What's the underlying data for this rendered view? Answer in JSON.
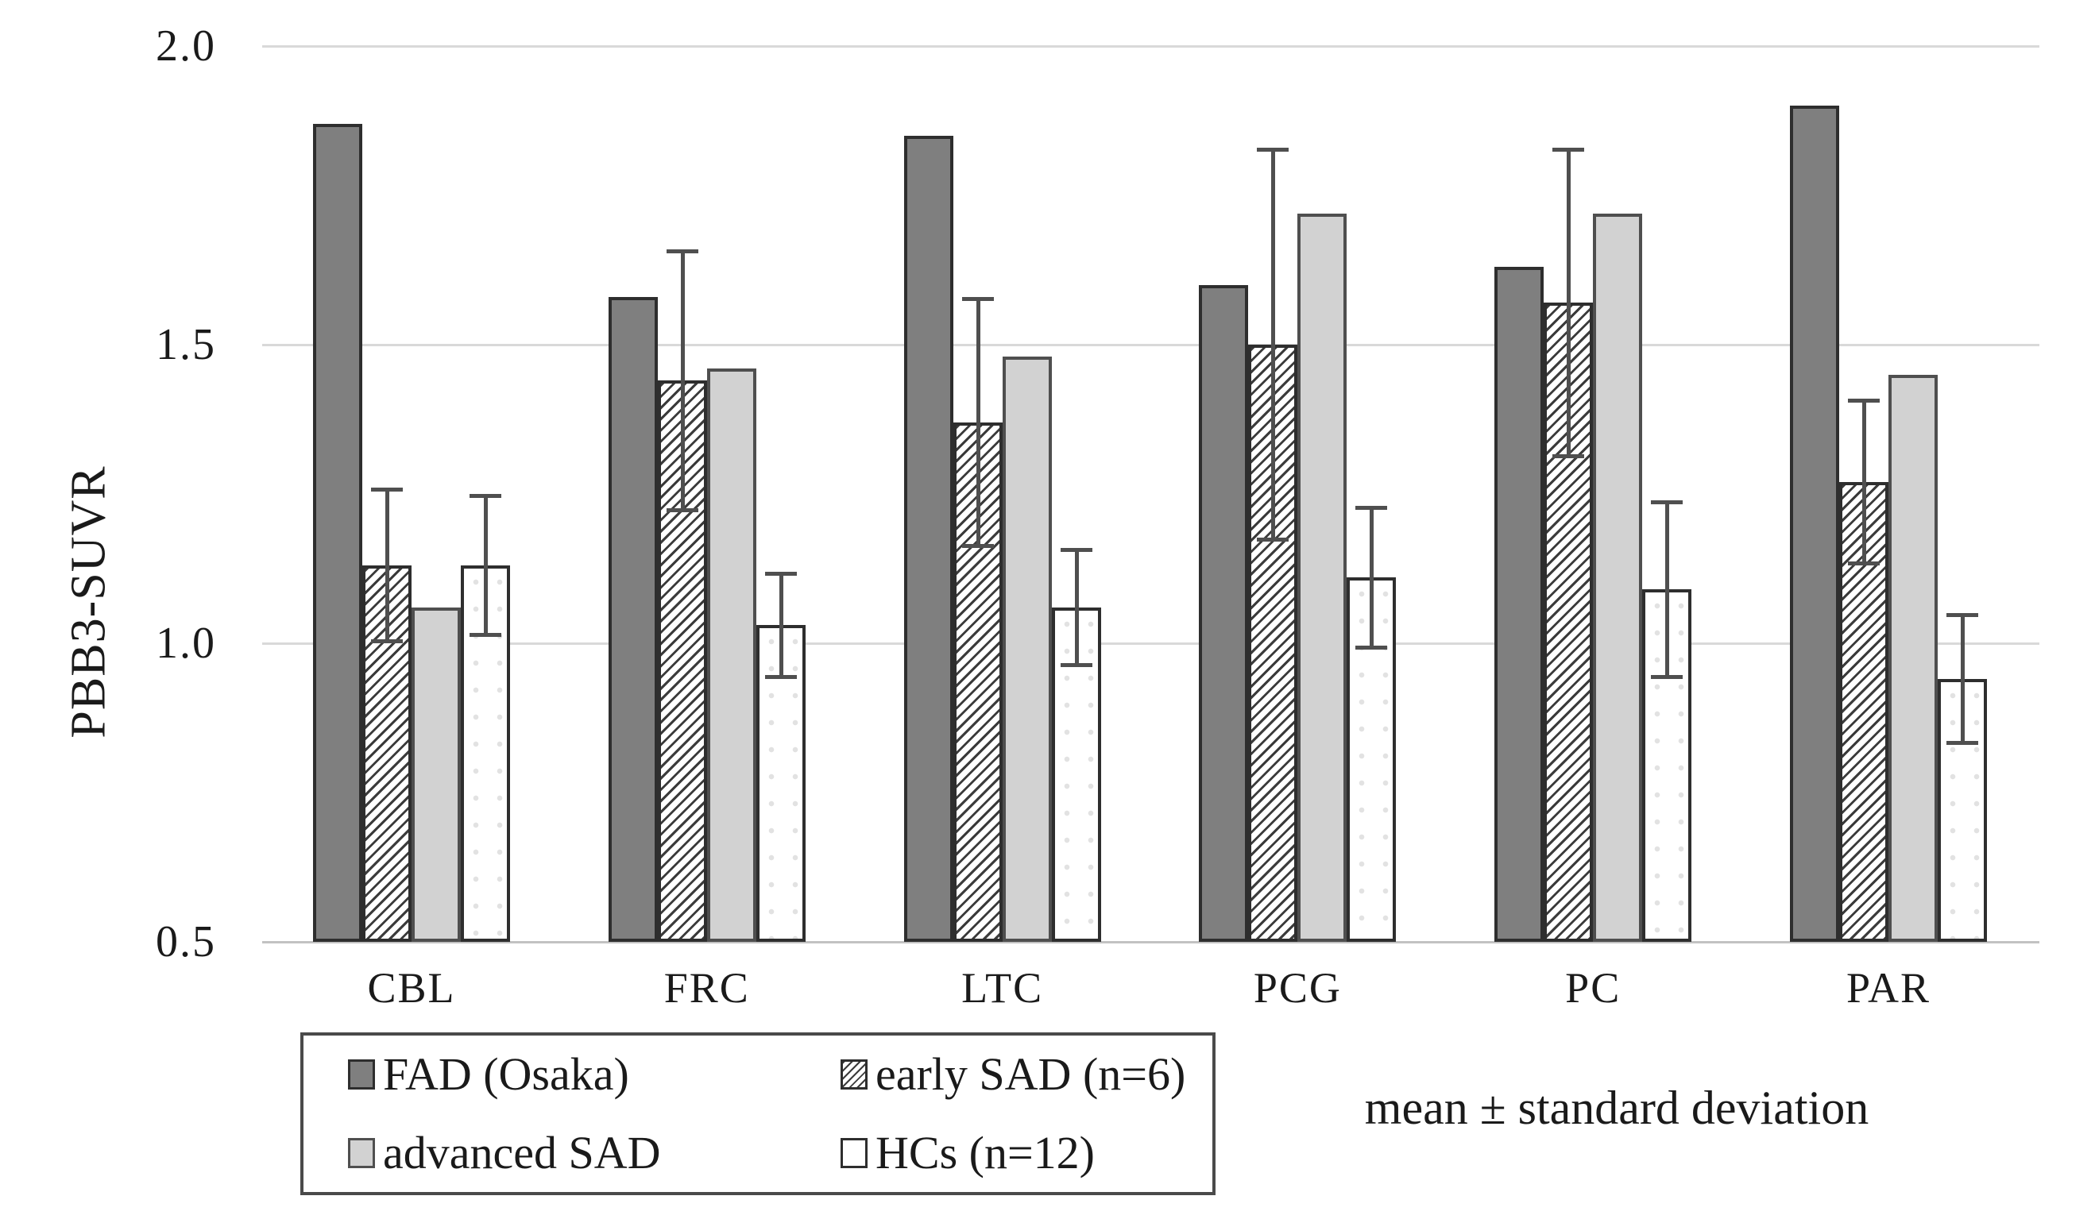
{
  "chart_data": {
    "type": "bar",
    "title": "",
    "ylabel": "PBB3-SUVR",
    "xlabel": "",
    "ylim": [
      0.5,
      2.0
    ],
    "yticks": [
      "2.0",
      "1.5",
      "1.0",
      "0.5"
    ],
    "ytick_values": [
      2.0,
      1.5,
      1.0,
      0.5
    ],
    "grid": "horizontal",
    "legend_position": "bottom-left-box",
    "categories": [
      "CBL",
      "FRC",
      "LTC",
      "PCG",
      "PC",
      "PAR"
    ],
    "series": [
      {
        "name": "FAD (Osaka)",
        "style": "solid-dark",
        "values": [
          1.87,
          1.58,
          1.85,
          1.6,
          1.63,
          1.9
        ],
        "sd": null
      },
      {
        "name": "early SAD (n=6)",
        "style": "hatched",
        "values": [
          1.13,
          1.44,
          1.37,
          1.5,
          1.57,
          1.27
        ],
        "sd": [
          0.13,
          0.22,
          0.21,
          0.33,
          0.26,
          0.14
        ]
      },
      {
        "name": "advanced SAD",
        "style": "solid-light",
        "values": [
          1.06,
          1.46,
          1.48,
          1.72,
          1.72,
          1.45
        ],
        "sd": null
      },
      {
        "name": "HCs (n=12)",
        "style": "outline-dotted",
        "values": [
          1.13,
          1.03,
          1.06,
          1.11,
          1.09,
          0.94
        ],
        "sd": [
          0.12,
          0.09,
          0.1,
          0.12,
          0.15,
          0.11
        ]
      }
    ],
    "annotation": "mean ± standard deviation",
    "error_bars": "standard deviation",
    "colors": {
      "bar_dark": "#7f7f7f",
      "bar_light": "#d2d2d2",
      "hatch_line": "#3b3b3b",
      "bar_border": "#2e2e2e",
      "gridline": "#d9d9d9",
      "error_bar": "#4f4f4f",
      "background": "#ffffff"
    }
  }
}
